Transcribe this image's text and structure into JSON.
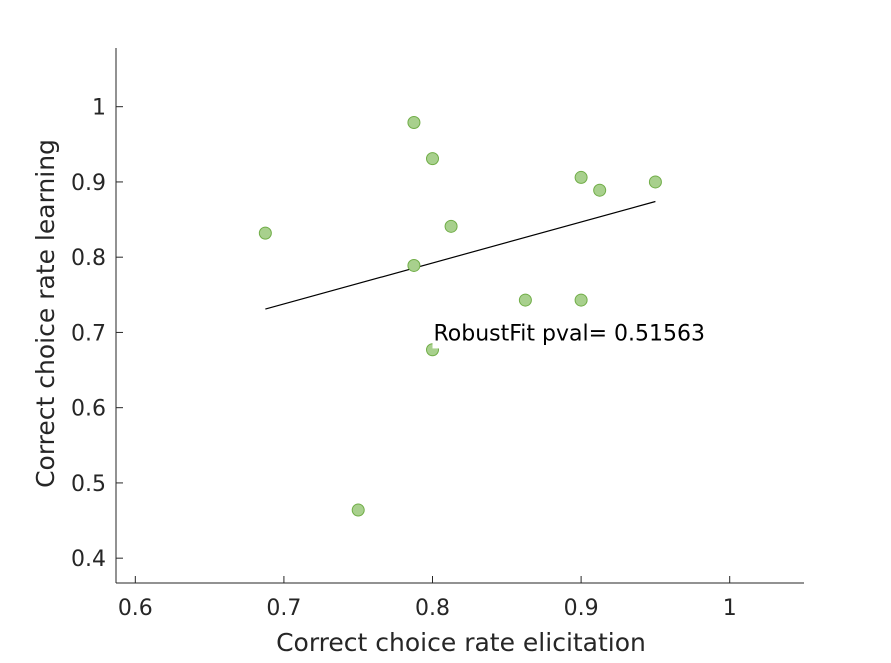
{
  "chart_data": {
    "type": "scatter",
    "title": "",
    "xlabel": "Correct choice rate elicitation",
    "ylabel": "Correct choice rate learning",
    "xlim": [
      0.587,
      1.05
    ],
    "ylim": [
      0.367,
      1.078
    ],
    "xticks": [
      0.6,
      0.7,
      0.8,
      0.9,
      1
    ],
    "xtick_labels": [
      "0.6",
      "0.7",
      "0.8",
      "0.9",
      "1"
    ],
    "yticks": [
      0.4,
      0.5,
      0.6,
      0.7,
      0.8,
      0.9,
      1
    ],
    "ytick_labels": [
      "0.4",
      "0.5",
      "0.6",
      "0.7",
      "0.8",
      "0.9",
      "1"
    ],
    "grid": false,
    "legend": "none",
    "series": [
      {
        "marker_color": "#a8d08d",
        "marker_edge_color": "#70ad47",
        "points": [
          {
            "x": 0.6875,
            "y": 0.832
          },
          {
            "x": 0.75,
            "y": 0.464
          },
          {
            "x": 0.7875,
            "y": 0.979
          },
          {
            "x": 0.7875,
            "y": 0.789
          },
          {
            "x": 0.8,
            "y": 0.931
          },
          {
            "x": 0.8,
            "y": 0.677
          },
          {
            "x": 0.8125,
            "y": 0.841
          },
          {
            "x": 0.8625,
            "y": 0.743
          },
          {
            "x": 0.9,
            "y": 0.906
          },
          {
            "x": 0.9,
            "y": 0.743
          },
          {
            "x": 0.9125,
            "y": 0.889
          },
          {
            "x": 0.95,
            "y": 0.9
          }
        ]
      }
    ],
    "fit_line": {
      "color": "#000000",
      "x": [
        0.6875,
        0.95
      ],
      "y": [
        0.731,
        0.874
      ]
    },
    "annotation": {
      "text": "RobustFit pval= 0.51563",
      "x": 0.8,
      "y": 0.7
    }
  }
}
